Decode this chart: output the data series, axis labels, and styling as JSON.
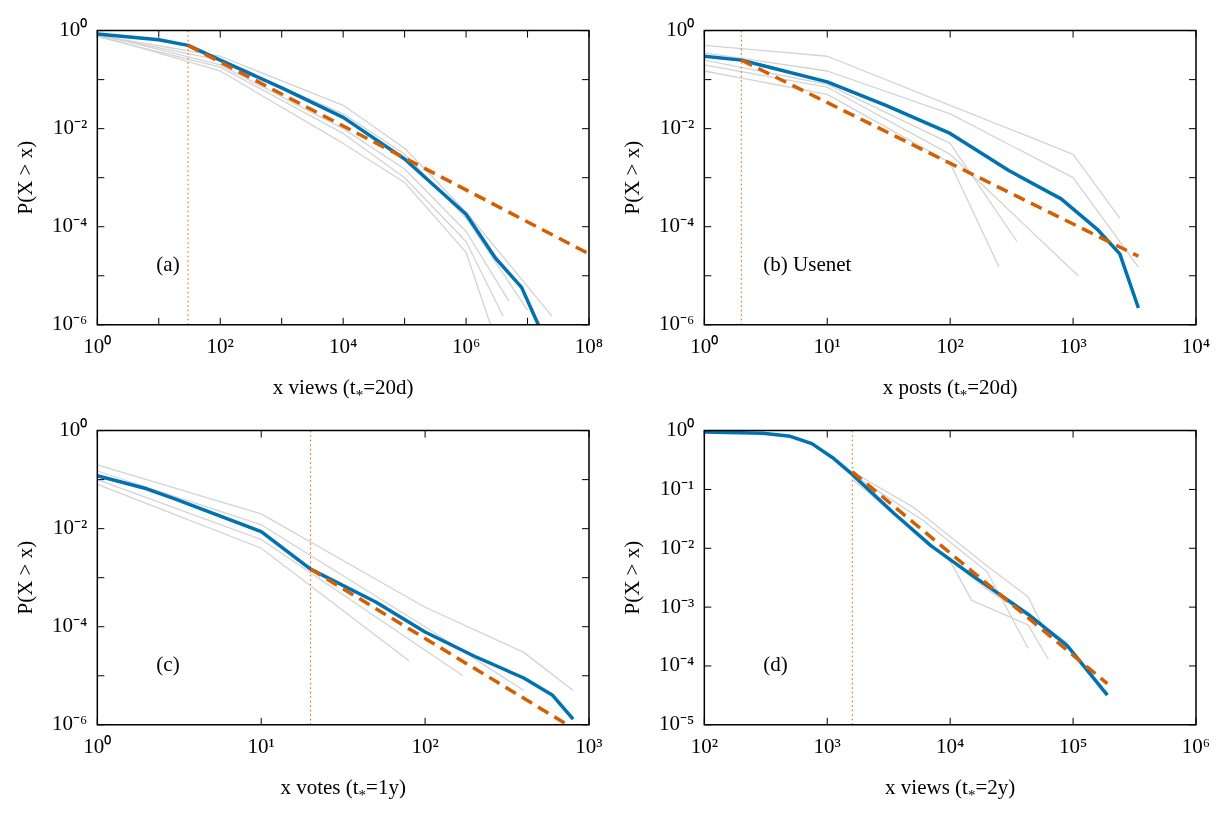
{
  "chart_data": [
    {
      "type": "line",
      "xlabel": "x views (t$_{*}$=20d)",
      "ylabel": "P(X > x)",
      "log": "xy",
      "marker": "none",
      "annotations": [
        "(a)"
      ],
      "xlim": [
        1,
        100000000
      ],
      "ylim": [
        1e-06,
        1
      ],
      "xticks": [
        {
          "value": 1,
          "label": "10⁰"
        },
        {
          "value": 10,
          "label": null
        },
        {
          "value": 100,
          "label": "10²"
        },
        {
          "value": 1000,
          "label": null
        },
        {
          "value": 10000,
          "label": "10⁴"
        },
        {
          "value": 100000,
          "label": null
        },
        {
          "value": 1000000,
          "label": "10⁶"
        },
        {
          "value": 10000000,
          "label": null
        },
        {
          "value": 100000000,
          "label": "10⁸"
        }
      ],
      "yticks": [
        {
          "value": 1e-06,
          "label": "10⁻⁶"
        },
        {
          "value": 1e-05,
          "label": null
        },
        {
          "value": 0.0001,
          "label": "10⁻⁴"
        },
        {
          "value": 0.001,
          "label": null
        },
        {
          "value": 0.01,
          "label": "10⁻²"
        },
        {
          "value": 0.1,
          "label": null
        },
        {
          "value": 1,
          "label": "10⁰"
        }
      ],
      "ref_lines": [
        {
          "axis": "x",
          "value": 30,
          "color": "#d55e00",
          "line_style": "dotted"
        }
      ],
      "series": [
        {
          "color": "#d3d3d3",
          "x": [
            1,
            100,
            10000,
            100000,
            1000000,
            25000000
          ],
          "values": [
            0.8,
            0.3,
            0.03,
            0.004,
            0.0002,
            1.5e-06
          ]
        },
        {
          "color": "#d3d3d3",
          "x": [
            1,
            100,
            10000,
            100000,
            1000000,
            2500000
          ],
          "values": [
            0.8,
            0.15,
            0.005,
            0.0008,
            3e-05,
            1e-06
          ]
        },
        {
          "color": "#d3d3d3",
          "x": [
            1,
            100,
            10000,
            100000,
            1000000,
            5000000
          ],
          "values": [
            0.85,
            0.2,
            0.01,
            0.0015,
            8e-05,
            3e-06
          ]
        },
        {
          "color": "#d3d3d3",
          "x": [
            1,
            100,
            10000,
            100000,
            1000000,
            10000000
          ],
          "values": [
            0.8,
            0.25,
            0.02,
            0.003,
            0.00015,
            2e-06
          ]
        },
        {
          "color": "#d3d3d3",
          "x": [
            1,
            100,
            10000,
            100000,
            1000000,
            4000000
          ],
          "values": [
            0.75,
            0.18,
            0.008,
            0.001,
            5e-05,
            1.5e-06
          ]
        },
        {
          "color": "#0072b2",
          "x": [
            1,
            10,
            30,
            100,
            1000,
            10000,
            100000,
            1000000,
            3000000,
            8000000,
            15000000
          ],
          "values": [
            0.85,
            0.65,
            0.5,
            0.25,
            0.068,
            0.017,
            0.0024,
            0.00018,
            2.3e-05,
            5.8e-06,
            1e-06
          ]
        },
        {
          "color": "#d55e00",
          "line_style": "dashed",
          "x": [
            30,
            100000000
          ],
          "values": [
            0.5,
            2.8e-05
          ]
        }
      ]
    },
    {
      "type": "line",
      "xlabel": "x posts (t$_{*}$=20d)",
      "ylabel": "P(X > x)",
      "log": "xy",
      "marker": "none",
      "annotations": [
        "(b) Usenet"
      ],
      "xlim": [
        1,
        10000
      ],
      "ylim": [
        1e-06,
        1
      ],
      "xticks": [
        {
          "value": 1,
          "label": "10⁰"
        },
        {
          "value": 10,
          "label": "10¹"
        },
        {
          "value": 100,
          "label": "10²"
        },
        {
          "value": 1000,
          "label": "10³"
        },
        {
          "value": 10000,
          "label": "10⁴"
        }
      ],
      "yticks": [
        {
          "value": 1e-06,
          "label": "10⁻⁶"
        },
        {
          "value": 1e-05,
          "label": null
        },
        {
          "value": 0.0001,
          "label": "10⁻⁴"
        },
        {
          "value": 0.001,
          "label": null
        },
        {
          "value": 0.01,
          "label": "10⁻²"
        },
        {
          "value": 0.1,
          "label": null
        },
        {
          "value": 1,
          "label": "10⁰"
        }
      ],
      "ref_lines": [
        {
          "axis": "x",
          "value": 2,
          "color": "#d55e00",
          "line_style": "dotted"
        }
      ],
      "series": [
        {
          "color": "#d3d3d3",
          "x": [
            1,
            10,
            100,
            1000,
            2400
          ],
          "values": [
            0.5,
            0.3,
            0.03,
            0.003,
            0.00015
          ]
        },
        {
          "color": "#d3d3d3",
          "x": [
            1,
            10,
            100,
            250
          ],
          "values": [
            0.15,
            0.05,
            0.002,
            1.5e-05
          ]
        },
        {
          "color": "#d3d3d3",
          "x": [
            1,
            10,
            100,
            350
          ],
          "values": [
            0.25,
            0.08,
            0.005,
            5e-05
          ]
        },
        {
          "color": "#d3d3d3",
          "x": [
            1,
            10,
            100,
            1000,
            3400
          ],
          "values": [
            0.35,
            0.15,
            0.02,
            0.001,
            1.5e-05
          ]
        },
        {
          "color": "#d3d3d3",
          "x": [
            1,
            10,
            100,
            1100
          ],
          "values": [
            0.2,
            0.07,
            0.003,
            1e-05
          ]
        },
        {
          "color": "#0072b2",
          "x": [
            1,
            2,
            10,
            30,
            100,
            300,
            800,
            1600,
            2400,
            3400
          ],
          "values": [
            0.3,
            0.25,
            0.09,
            0.03,
            0.008,
            0.0014,
            0.00037,
            8.5e-05,
            2.8e-05,
            2.2e-06
          ]
        },
        {
          "color": "#d55e00",
          "line_style": "dashed",
          "x": [
            2,
            3400
          ],
          "values": [
            0.25,
            2.5e-05
          ]
        }
      ]
    },
    {
      "type": "line",
      "xlabel": "x votes (t$_{*}$=1y)",
      "ylabel": "P(X > x)",
      "log": "xy",
      "marker": "none",
      "annotations": [
        "(c)"
      ],
      "xlim": [
        1,
        1000
      ],
      "ylim": [
        1e-06,
        1
      ],
      "xticks": [
        {
          "value": 1,
          "label": "10⁰"
        },
        {
          "value": 10,
          "label": "10¹"
        },
        {
          "value": 100,
          "label": "10²"
        },
        {
          "value": 1000,
          "label": "10³"
        }
      ],
      "yticks": [
        {
          "value": 1e-06,
          "label": "10⁻⁶"
        },
        {
          "value": 1e-05,
          "label": null
        },
        {
          "value": 0.0001,
          "label": "10⁻⁴"
        },
        {
          "value": 0.001,
          "label": null
        },
        {
          "value": 0.01,
          "label": "10⁻²"
        },
        {
          "value": 0.1,
          "label": null
        },
        {
          "value": 1,
          "label": "10⁰"
        }
      ],
      "ref_lines": [
        {
          "axis": "x",
          "value": 20,
          "color": "#d55e00",
          "line_style": "dotted"
        }
      ],
      "series": [
        {
          "color": "#d3d3d3",
          "x": [
            1,
            10,
            100,
            400,
            800
          ],
          "values": [
            0.2,
            0.02,
            0.00025,
            3e-05,
            5e-06
          ]
        },
        {
          "color": "#d3d3d3",
          "x": [
            1,
            10,
            80
          ],
          "values": [
            0.08,
            0.004,
            2e-05
          ]
        },
        {
          "color": "#d3d3d3",
          "x": [
            1,
            10,
            100,
            400
          ],
          "values": [
            0.15,
            0.012,
            0.0001,
            5e-06
          ]
        },
        {
          "color": "#d3d3d3",
          "x": [
            1,
            10,
            170
          ],
          "values": [
            0.1,
            0.006,
            1e-05
          ]
        },
        {
          "color": "#0072b2",
          "x": [
            1,
            2,
            3,
            10,
            20,
            50,
            100,
            200,
            400,
            600,
            800
          ],
          "values": [
            0.12,
            0.065,
            0.04,
            0.0087,
            0.0015,
            0.00032,
            7.8e-05,
            2.5e-05,
            9e-06,
            4e-06,
            1.3e-06
          ]
        },
        {
          "color": "#d55e00",
          "line_style": "dashed",
          "x": [
            20,
            740
          ],
          "values": [
            0.0015,
            1e-06
          ]
        }
      ]
    },
    {
      "type": "line",
      "xlabel": "x views (t$_{*}$=2y)",
      "ylabel": "P(X > x)",
      "log": "xy",
      "marker": "none",
      "annotations": [
        "(d)"
      ],
      "xlim": [
        100,
        1000000
      ],
      "ylim": [
        1e-05,
        1
      ],
      "xticks": [
        {
          "value": 100,
          "label": "10²"
        },
        {
          "value": 1000,
          "label": "10³"
        },
        {
          "value": 10000,
          "label": "10⁴"
        },
        {
          "value": 100000,
          "label": "10⁵"
        },
        {
          "value": 1000000,
          "label": "10⁶"
        }
      ],
      "yticks": [
        {
          "value": 1e-05,
          "label": "10⁻⁵"
        },
        {
          "value": 0.0001,
          "label": "10⁻⁴"
        },
        {
          "value": 0.001,
          "label": "10⁻³"
        },
        {
          "value": 0.01,
          "label": "10⁻²"
        },
        {
          "value": 0.1,
          "label": "10⁻¹"
        },
        {
          "value": 1,
          "label": "10⁰"
        }
      ],
      "ref_lines": [
        {
          "axis": "x",
          "value": 1600,
          "color": "#d55e00",
          "line_style": "dotted"
        }
      ],
      "series": [
        {
          "color": "#d3d3d3",
          "x": [
            1600,
            5000,
            20000,
            43000,
            63000
          ],
          "values": [
            0.2,
            0.05,
            0.005,
            0.0015,
            0.0003
          ]
        },
        {
          "color": "#d3d3d3",
          "x": [
            1600,
            4000,
            10000,
            15000,
            43000,
            63000
          ],
          "values": [
            0.17,
            0.03,
            0.006,
            0.0013,
            0.0005,
            0.00013
          ]
        },
        {
          "color": "#d3d3d3",
          "x": [
            1600,
            6000,
            20000,
            43000
          ],
          "values": [
            0.18,
            0.03,
            0.004,
            0.0002
          ]
        },
        {
          "color": "#d3d3d3",
          "x": [
            1600,
            5000,
            20000,
            90000
          ],
          "values": [
            0.15,
            0.02,
            0.002,
            0.00025
          ]
        },
        {
          "color": "#0072b2",
          "x": [
            100,
            300,
            500,
            750,
            1100,
            1600,
            3500,
            7000,
            15000,
            43000,
            90000,
            190000
          ],
          "values": [
            0.95,
            0.9,
            0.8,
            0.6,
            0.35,
            0.18,
            0.039,
            0.011,
            0.0035,
            0.00076,
            0.00022,
            3.2e-05
          ]
        },
        {
          "color": "#d55e00",
          "line_style": "dashed",
          "x": [
            1600,
            190000
          ],
          "values": [
            0.2,
            5e-05
          ]
        }
      ]
    }
  ]
}
